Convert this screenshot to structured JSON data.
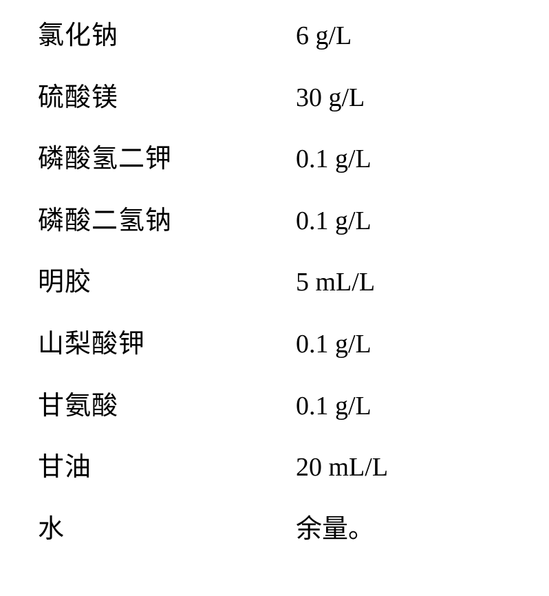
{
  "table": {
    "background_color": "#ffffff",
    "text_color": "#000000",
    "font_size": 38,
    "font_family_label": "SimSun",
    "font_family_value": "Times New Roman",
    "row_spacing": 44,
    "rows": [
      {
        "label": "氯化钠",
        "value": "6 g/L"
      },
      {
        "label": "硫酸镁",
        "value": "30 g/L"
      },
      {
        "label": "磷酸氢二钾",
        "value": "0.1 g/L"
      },
      {
        "label": "磷酸二氢钠",
        "value": "0.1 g/L"
      },
      {
        "label": "明胶",
        "value": "5 mL/L"
      },
      {
        "label": "山梨酸钾",
        "value": "0.1 g/L"
      },
      {
        "label": "甘氨酸",
        "value": "0.1 g/L"
      },
      {
        "label": "甘油",
        "value": "20 mL/L"
      },
      {
        "label": "水",
        "value": "余量。"
      }
    ]
  }
}
